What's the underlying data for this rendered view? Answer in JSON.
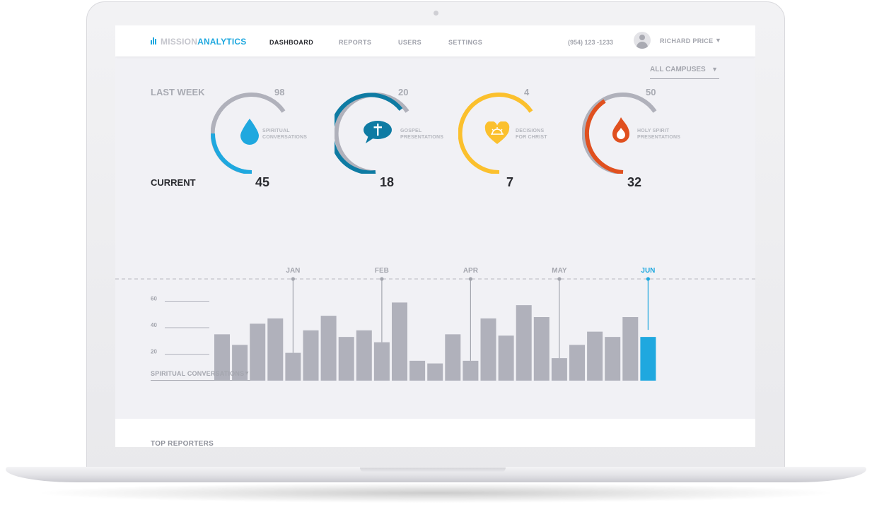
{
  "brand": {
    "part1": "MISSION",
    "part2": "ANALYTICS",
    "accent": "#1fa8df"
  },
  "nav": {
    "items": [
      {
        "label": "DASHBOARD",
        "active": true
      },
      {
        "label": "REPORTS",
        "active": false
      },
      {
        "label": "USERS",
        "active": false
      },
      {
        "label": "SETTINGS",
        "active": false
      }
    ]
  },
  "header": {
    "phone": "(954) 123 -1233",
    "user_name": "RICHARD PRICE",
    "user_caret": "▼"
  },
  "filter": {
    "campus": "ALL CAMPUSES",
    "caret": "▼"
  },
  "summary": {
    "last_week_label": "LAST WEEK",
    "current_label": "CURRENT",
    "metrics": [
      {
        "name": "spiritual-conversations",
        "label_line1": "SPIRITUAL",
        "label_line2": "CONVERSATIONS",
        "last_week": "98",
        "current": "45",
        "color": "#1fa8df",
        "icon": "water-drop-icon",
        "progress": 0.46
      },
      {
        "name": "gospel-presentations",
        "label_line1": "GOSPEL",
        "label_line2": "PRESENTATIONS",
        "last_week": "20",
        "current": "18",
        "color": "#0e7ba3",
        "icon": "speech-bubble-cross-icon",
        "progress": 0.9
      },
      {
        "name": "decisions-for-christ",
        "label_line1": "DECISIONS",
        "label_line2": "FOR CHRIST",
        "last_week": "4",
        "current": "7",
        "color": "#fbc02d",
        "icon": "heart-sunrise-icon",
        "progress": 1.0
      },
      {
        "name": "holy-spirit-presentations",
        "label_line1": "HOLY SPIRIT",
        "label_line2": "PRESENTATIONS",
        "last_week": "50",
        "current": "32",
        "color": "#e0501f",
        "icon": "flame-icon",
        "progress": 0.64
      }
    ]
  },
  "chart_data": {
    "type": "bar",
    "series_name": "SPIRITUAL CONVERSATIONS",
    "ylim": [
      0,
      80
    ],
    "yticks": [
      20,
      40,
      60
    ],
    "values": [
      35,
      27,
      43,
      47,
      21,
      38,
      49,
      33,
      38,
      29,
      59,
      15,
      13,
      35,
      15,
      47,
      34,
      57,
      48,
      17,
      27,
      37,
      33,
      48,
      33
    ],
    "highlight_index": 24,
    "bar_color": "#b0b1bb",
    "highlight_color": "#1fa8df",
    "month_markers": [
      {
        "label": "JAN",
        "bar_index": 4,
        "highlight": false
      },
      {
        "label": "FEB",
        "bar_index": 9,
        "highlight": false
      },
      {
        "label": "APR",
        "bar_index": 14,
        "highlight": false
      },
      {
        "label": "MAY",
        "bar_index": 19,
        "highlight": false
      },
      {
        "label": "JUN",
        "bar_index": 24,
        "highlight": true
      }
    ]
  },
  "chart_controls": {
    "series_select": "SPIRITUAL CONVERSATIONS",
    "caret": "▼"
  },
  "bottom": {
    "top_reporters": "TOP REPORTERS"
  }
}
